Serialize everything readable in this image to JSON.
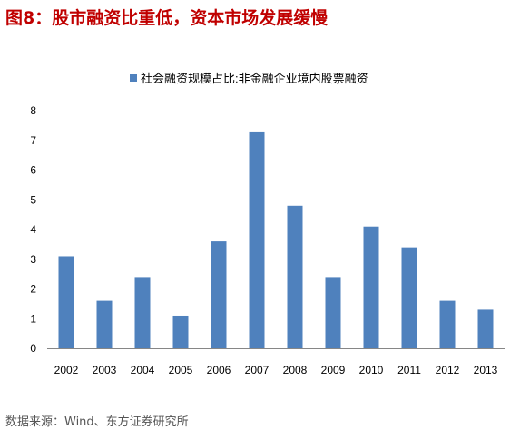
{
  "figure": {
    "title": "图8：股市融资比重低，资本市场发展缓慢",
    "source": "数据来源：Wind、东方证券研究所"
  },
  "colors": {
    "title": "#c00000",
    "bar": "#4f81bd",
    "axis": "#868686",
    "text": "#000000"
  },
  "chart_data": {
    "type": "bar",
    "categories": [
      "2002",
      "2003",
      "2004",
      "2005",
      "2006",
      "2007",
      "2008",
      "2009",
      "2010",
      "2011",
      "2012",
      "2013"
    ],
    "series": [
      {
        "name": "社会融资规模占比:非金融企业境内股票融资",
        "values": [
          3.1,
          1.6,
          2.4,
          1.1,
          3.6,
          7.3,
          4.8,
          2.4,
          4.1,
          3.4,
          1.6,
          1.3
        ]
      }
    ],
    "yticks": [
      "0",
      "1",
      "2",
      "3",
      "4",
      "5",
      "6",
      "7",
      "8"
    ],
    "ylim": [
      0,
      8
    ],
    "grid": false,
    "legend": "top"
  }
}
